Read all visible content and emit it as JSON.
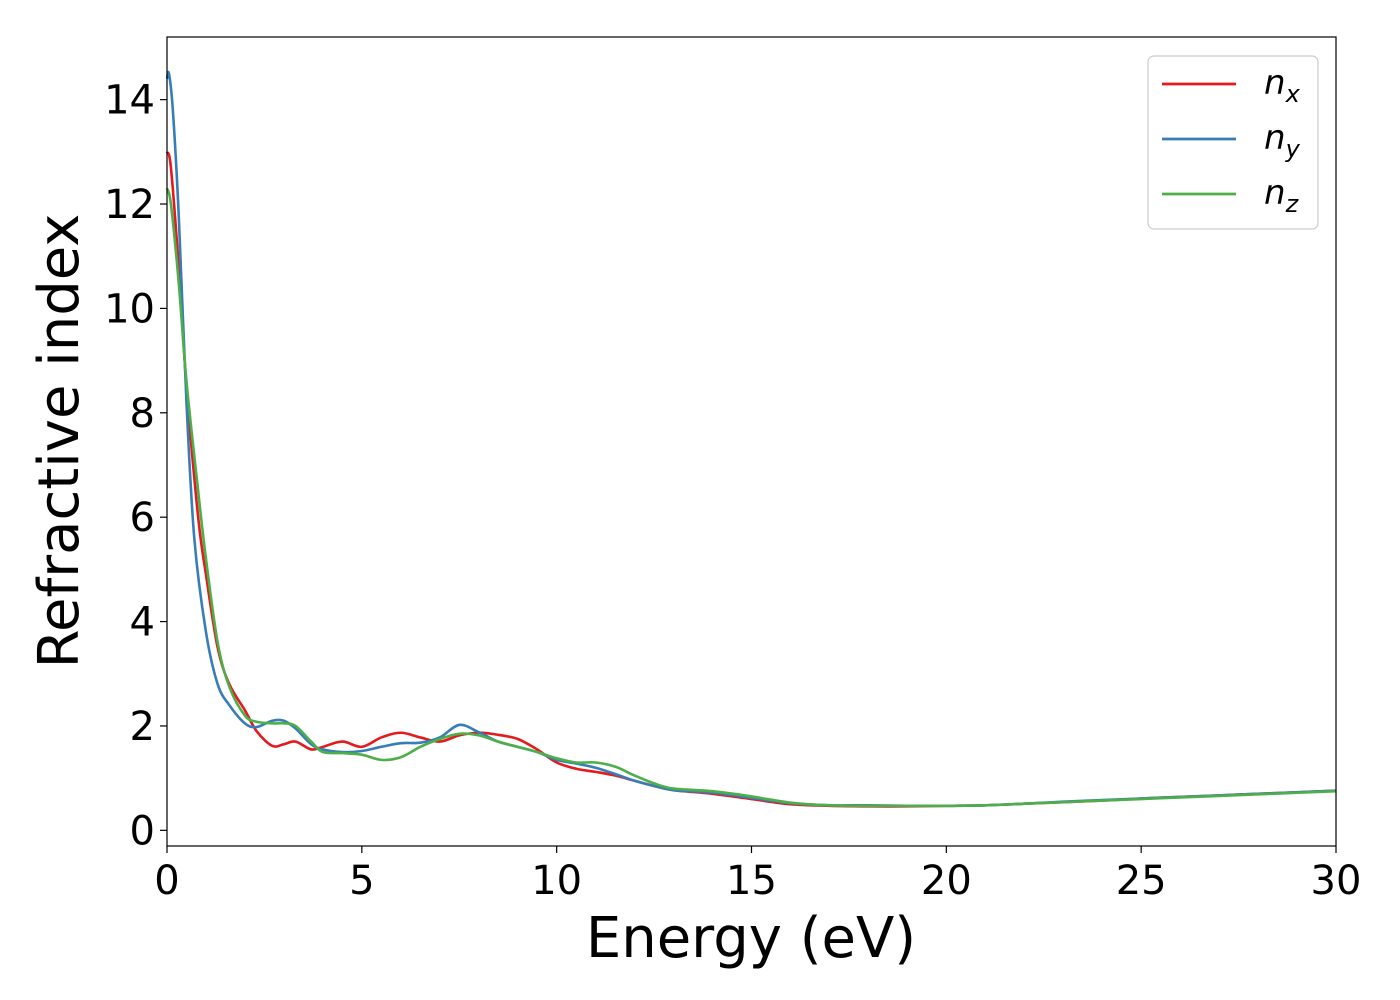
{
  "chart_data": {
    "type": "line",
    "title": "",
    "xlabel": "Energy (eV)",
    "ylabel": "Refractive index",
    "xlim": [
      0,
      30
    ],
    "ylim": [
      -0.3,
      15.2
    ],
    "xticks": [
      0,
      5,
      10,
      15,
      20,
      25,
      30
    ],
    "yticks": [
      0,
      2,
      4,
      6,
      8,
      10,
      12,
      14
    ],
    "grid": false,
    "legend_position": "top-right",
    "series": [
      {
        "name": "n_x",
        "label_base": "n",
        "label_sub": "x",
        "color": "#e41a1c",
        "x": [
          0,
          0.1,
          0.3,
          0.5,
          0.8,
          1.0,
          1.3,
          1.6,
          2.0,
          2.3,
          2.7,
          3.0,
          3.3,
          3.7,
          4.0,
          4.5,
          5.0,
          5.5,
          6.0,
          6.5,
          7.0,
          7.5,
          8.0,
          8.5,
          9.0,
          9.5,
          10.0,
          10.5,
          11.0,
          11.5,
          12.0,
          12.5,
          13.0,
          14.0,
          15.0,
          16.0,
          17.0,
          18.0,
          19.0,
          20.0,
          21.0,
          22.0,
          23.0,
          24.0,
          25.0,
          26.0,
          27.0,
          28.0,
          29.0,
          30.0
        ],
        "y": [
          13.0,
          12.7,
          10.8,
          8.5,
          6.0,
          4.9,
          3.5,
          2.8,
          2.3,
          1.9,
          1.62,
          1.65,
          1.7,
          1.55,
          1.6,
          1.7,
          1.6,
          1.78,
          1.87,
          1.78,
          1.7,
          1.82,
          1.87,
          1.83,
          1.75,
          1.55,
          1.3,
          1.18,
          1.12,
          1.05,
          0.95,
          0.85,
          0.77,
          0.7,
          0.6,
          0.5,
          0.47,
          0.46,
          0.46,
          0.47,
          0.48,
          0.51,
          0.54,
          0.57,
          0.61,
          0.64,
          0.67,
          0.7,
          0.73,
          0.76
        ]
      },
      {
        "name": "n_y",
        "label_base": "n",
        "label_sub": "y",
        "color": "#377eb8",
        "x": [
          0,
          0.05,
          0.15,
          0.3,
          0.5,
          0.7,
          1.0,
          1.3,
          1.6,
          2.0,
          2.3,
          2.7,
          3.0,
          3.3,
          3.7,
          4.0,
          4.5,
          5.0,
          5.5,
          6.0,
          6.5,
          7.0,
          7.5,
          8.0,
          8.5,
          9.0,
          9.5,
          10.0,
          10.5,
          11.0,
          11.5,
          12.0,
          12.5,
          13.0,
          14.0,
          15.0,
          16.0,
          17.0,
          18.0,
          19.0,
          20.0,
          21.0,
          22.0,
          23.0,
          24.0,
          25.0,
          26.0,
          27.0,
          28.0,
          29.0,
          30.0
        ],
        "y": [
          14.4,
          14.5,
          13.8,
          11.8,
          8.2,
          5.6,
          3.8,
          2.8,
          2.4,
          2.05,
          1.98,
          2.1,
          2.1,
          1.95,
          1.65,
          1.55,
          1.5,
          1.52,
          1.6,
          1.67,
          1.68,
          1.78,
          2.02,
          1.88,
          1.7,
          1.6,
          1.5,
          1.35,
          1.28,
          1.2,
          1.08,
          0.95,
          0.85,
          0.77,
          0.72,
          0.62,
          0.52,
          0.48,
          0.48,
          0.47,
          0.47,
          0.48,
          0.51,
          0.55,
          0.58,
          0.61,
          0.64,
          0.67,
          0.7,
          0.73,
          0.76
        ]
      },
      {
        "name": "n_z",
        "label_base": "n",
        "label_sub": "z",
        "color": "#4daf4a",
        "x": [
          0,
          0.1,
          0.3,
          0.5,
          0.8,
          1.0,
          1.3,
          1.6,
          2.0,
          2.3,
          2.7,
          3.0,
          3.3,
          3.7,
          4.0,
          4.5,
          5.0,
          5.5,
          6.0,
          6.5,
          7.0,
          7.5,
          8.0,
          8.5,
          9.0,
          9.5,
          10.0,
          10.5,
          11.0,
          11.5,
          12.0,
          12.5,
          13.0,
          14.0,
          15.0,
          16.0,
          17.0,
          18.0,
          19.0,
          20.0,
          21.0,
          22.0,
          23.0,
          24.0,
          25.0,
          26.0,
          27.0,
          28.0,
          29.0,
          30.0
        ],
        "y": [
          12.3,
          12.0,
          10.5,
          8.6,
          6.5,
          5.2,
          3.6,
          2.75,
          2.2,
          2.08,
          2.05,
          2.05,
          2.0,
          1.7,
          1.5,
          1.48,
          1.45,
          1.35,
          1.4,
          1.6,
          1.75,
          1.85,
          1.82,
          1.7,
          1.6,
          1.5,
          1.38,
          1.3,
          1.3,
          1.22,
          1.05,
          0.9,
          0.8,
          0.75,
          0.65,
          0.53,
          0.48,
          0.47,
          0.47,
          0.47,
          0.48,
          0.51,
          0.54,
          0.57,
          0.6,
          0.63,
          0.66,
          0.69,
          0.72,
          0.75
        ]
      }
    ]
  }
}
